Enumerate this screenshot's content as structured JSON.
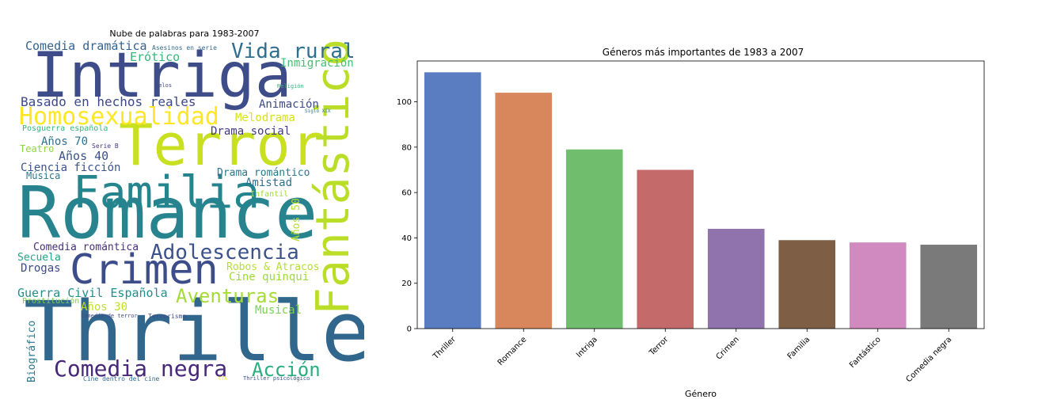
{
  "chart_data": [
    {
      "type": "wordcloud",
      "title": "Nube de palabras para 1983-2007",
      "words": [
        {
          "text": "Thriller",
          "color": "#31668d",
          "weight": 95,
          "rotate": false
        },
        {
          "text": "Romance",
          "color": "#27838e",
          "weight": 90,
          "rotate": false
        },
        {
          "text": "Intriga",
          "color": "#3e4c8a",
          "weight": 88,
          "rotate": false
        },
        {
          "text": "Terror",
          "color": "#c9e020",
          "weight": 85,
          "rotate": false
        },
        {
          "text": "Crimen",
          "color": "#3d4d8a",
          "weight": 75,
          "rotate": false
        },
        {
          "text": "Familia",
          "color": "#25858e",
          "weight": 70,
          "rotate": false
        },
        {
          "text": "Fantástico",
          "color": "#bade28",
          "weight": 70,
          "rotate": true
        },
        {
          "text": "Homosexualidad",
          "color": "#fde725",
          "weight": 45,
          "rotate": false
        },
        {
          "text": "Comedia negra",
          "color": "#482878",
          "weight": 40,
          "rotate": false
        },
        {
          "text": "Adolescencia",
          "color": "#3b528b",
          "weight": 40,
          "rotate": false
        },
        {
          "text": "Vida rural",
          "color": "#2e6e8e",
          "weight": 40,
          "rotate": false
        },
        {
          "text": "Aventuras",
          "color": "#a5db36",
          "weight": 34,
          "rotate": false
        },
        {
          "text": "Acción",
          "color": "#29af7f",
          "weight": 34,
          "rotate": false
        },
        {
          "text": "Basado en hechos reales",
          "color": "#3e4989",
          "weight": 24,
          "rotate": false
        },
        {
          "text": "Comedia dramática",
          "color": "#33638d",
          "weight": 22,
          "rotate": false
        },
        {
          "text": "Guerra Civil Española",
          "color": "#218f8d",
          "weight": 22,
          "rotate": false
        },
        {
          "text": "Erótico",
          "color": "#35b779",
          "weight": 22,
          "rotate": false
        },
        {
          "text": "Inmigración",
          "color": "#44bf70",
          "weight": 20,
          "rotate": false
        },
        {
          "text": "Animación",
          "color": "#3e4989",
          "weight": 20,
          "rotate": false
        },
        {
          "text": "Melodrama",
          "color": "#d8e219",
          "weight": 20,
          "rotate": false
        },
        {
          "text": "Drama social",
          "color": "#443983",
          "weight": 20,
          "rotate": false
        },
        {
          "text": "Años 70",
          "color": "#2c728e",
          "weight": 20,
          "rotate": false
        },
        {
          "text": "Años 40",
          "color": "#3b528b",
          "weight": 20,
          "rotate": false
        },
        {
          "text": "Ciencia ficción",
          "color": "#3b528b",
          "weight": 20,
          "rotate": false
        },
        {
          "text": "Drama romántico",
          "color": "#2a788e",
          "weight": 18,
          "rotate": false
        },
        {
          "text": "Amistad",
          "color": "#2d708e",
          "weight": 18,
          "rotate": false
        },
        {
          "text": "Comedia romántica",
          "color": "#46307e",
          "weight": 18,
          "rotate": false
        },
        {
          "text": "Drogas",
          "color": "#3e4a89",
          "weight": 18,
          "rotate": false
        },
        {
          "text": "Secuela",
          "color": "#20a486",
          "weight": 17,
          "rotate": false
        },
        {
          "text": "Cine quinqui",
          "color": "#9fda3a",
          "weight": 17,
          "rotate": false
        },
        {
          "text": "Robos & Atracos",
          "color": "#b5de2b",
          "weight": 16,
          "rotate": false
        },
        {
          "text": "Años 30",
          "color": "#c2df23",
          "weight": 16,
          "rotate": false
        },
        {
          "text": "Musical",
          "color": "#7ad151",
          "weight": 16,
          "rotate": false
        },
        {
          "text": "Música",
          "color": "#2a788e",
          "weight": 15,
          "rotate": false
        },
        {
          "text": "Teatro",
          "color": "#90d743",
          "weight": 15,
          "rotate": false
        },
        {
          "text": "Años 50",
          "color": "#b8de29",
          "weight": 15,
          "rotate": true
        },
        {
          "text": "Biográfico",
          "color": "#2a788e",
          "weight": 15,
          "rotate": true
        },
        {
          "text": "Posguerra española",
          "color": "#35b779",
          "weight": 12,
          "rotate": false
        },
        {
          "text": "Prostitución",
          "color": "#7ad151",
          "weight": 12,
          "rotate": false
        },
        {
          "text": "Infantil",
          "color": "#a0da39",
          "weight": 11,
          "rotate": false
        },
        {
          "text": "Asesinos en serie",
          "color": "#31688e",
          "weight": 10,
          "rotate": false
        },
        {
          "text": "Serie B",
          "color": "#443a83",
          "weight": 9,
          "rotate": false
        },
        {
          "text": "Comedia de terror",
          "color": "#3e4a89",
          "weight": 9,
          "rotate": false
        },
        {
          "text": "Terrorismo",
          "color": "#3e4a89",
          "weight": 9,
          "rotate": false
        },
        {
          "text": "Cine dentro del cine",
          "color": "#31688e",
          "weight": 9,
          "rotate": false
        },
        {
          "text": "Thriller psicológico",
          "color": "#3b528b",
          "weight": 8,
          "rotate": false
        },
        {
          "text": "Celos",
          "color": "#3e4a89",
          "weight": 8,
          "rotate": false
        },
        {
          "text": "Religión",
          "color": "#35b779",
          "weight": 8,
          "rotate": false
        },
        {
          "text": "Siglo XIX",
          "color": "#2a788e",
          "weight": 7,
          "rotate": false
        },
        {
          "text": "ETA",
          "color": "#fde725",
          "weight": 7,
          "rotate": false
        }
      ]
    },
    {
      "type": "bar",
      "title": "Géneros más importantes de 1983 a 2007",
      "xlabel": "Género",
      "ylabel": "",
      "ylim": [
        0,
        118
      ],
      "yticks": [
        0,
        20,
        40,
        60,
        80,
        100
      ],
      "grid": false,
      "categories": [
        "Thriller",
        "Romance",
        "Intriga",
        "Terror",
        "Crimen",
        "Familia",
        "Fantástico",
        "Comedia negra"
      ],
      "values": [
        113,
        104,
        79,
        70,
        44,
        39,
        38,
        37
      ],
      "colors": [
        "#5a7cc0",
        "#d8875c",
        "#70bd6e",
        "#c46a6a",
        "#9073ad",
        "#7f5e46",
        "#d18abf",
        "#7a7a7a"
      ]
    }
  ]
}
